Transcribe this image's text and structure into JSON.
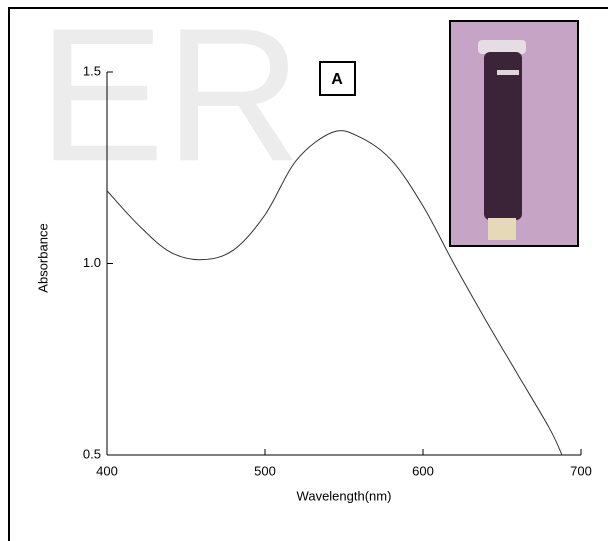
{
  "chart_data": {
    "type": "line",
    "watermark": "ER",
    "annotation": "A",
    "x_label": "Wavelength(nm)",
    "y_label": "Absorbance",
    "x": [
      400,
      420,
      440,
      460,
      480,
      500,
      520,
      543,
      560,
      580,
      600,
      620,
      640,
      660,
      680,
      688
    ],
    "series": [
      {
        "color": "#333333",
        "values": [
          1.19,
          1.1,
          1.03,
          1.01,
          1.035,
          1.127,
          1.27,
          1.343,
          1.33,
          1.27,
          1.15,
          0.996,
          0.85,
          0.71,
          0.57,
          0.5
        ]
      }
    ],
    "xlim": [
      400,
      700
    ],
    "xticks": [
      400,
      500,
      600,
      700
    ],
    "ylim": [
      0.5,
      1.5
    ],
    "yticks": [
      0.5,
      {
        "value": 1,
        "label": "1.0"
      },
      1.5
    ]
  }
}
